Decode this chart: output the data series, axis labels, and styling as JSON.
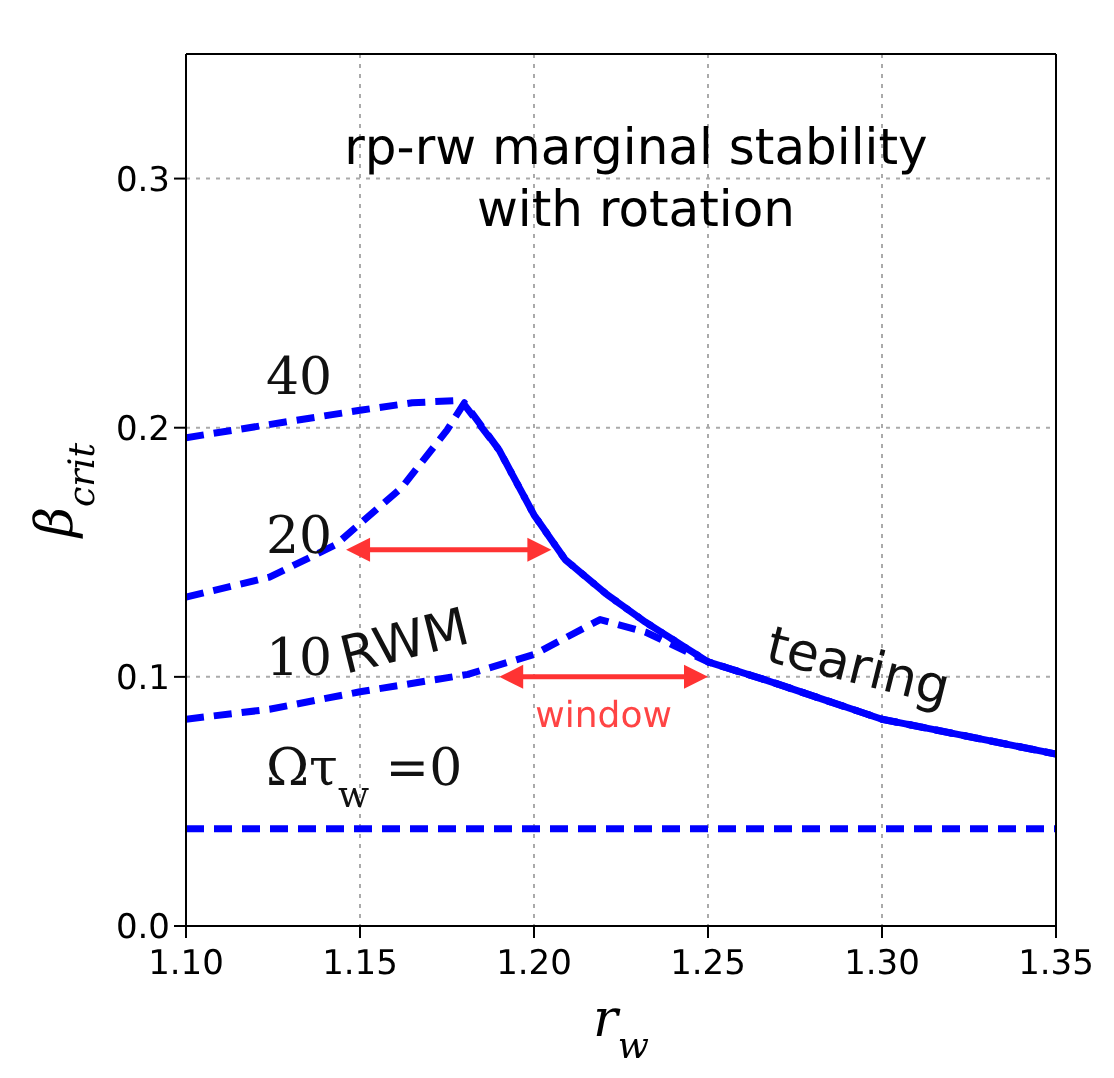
{
  "chart_data": {
    "type": "line",
    "title": "rp-rw marginal stability with rotation",
    "xlabel": "r$_{w}$",
    "ylabel": "β$_{crit}$",
    "xlim": [
      1.1,
      1.35
    ],
    "xticks": [
      {
        "value": 1.1,
        "label": "1.10"
      },
      {
        "value": 1.15,
        "label": "1.15"
      },
      {
        "value": 1.2,
        "label": "1.20"
      },
      {
        "value": 1.25,
        "label": "1.25"
      },
      {
        "value": 1.3,
        "label": "1.30"
      },
      {
        "value": 1.35,
        "label": "1.35"
      }
    ],
    "ylim": [
      0,
      0.35
    ],
    "yticks": [
      {
        "value": 0,
        "label": "0.0"
      },
      {
        "value": 0.1,
        "label": "0.1"
      },
      {
        "value": 0.2,
        "label": "0.2"
      },
      {
        "value": 0.3,
        "label": "0.3"
      }
    ],
    "grid": true,
    "legend": false,
    "marker": "none",
    "line_style": "dashed",
    "series": [
      {
        "name": "40",
        "color": "#0000ff",
        "x": [
          1.1,
          1.15,
          1.165,
          1.179,
          1.19,
          1.2,
          1.209,
          1.221,
          1.232,
          1.25,
          1.266,
          1.3,
          1.35
        ],
        "values": [
          0.196,
          0.207,
          0.21,
          0.211,
          0.191,
          0.165,
          0.147,
          0.133,
          0.122,
          0.106,
          0.099,
          0.083,
          0.069
        ]
      },
      {
        "name": "20",
        "color": "#0000ff",
        "x": [
          1.1,
          1.124,
          1.143,
          1.162,
          1.175,
          1.18,
          1.19,
          1.2,
          1.209,
          1.221,
          1.232,
          1.25,
          1.266,
          1.3,
          1.35
        ],
        "values": [
          0.132,
          0.14,
          0.153,
          0.176,
          0.199,
          0.21,
          0.191,
          0.165,
          0.147,
          0.133,
          0.122,
          0.106,
          0.099,
          0.083,
          0.069
        ]
      },
      {
        "name": "10",
        "color": "#0000ff",
        "x": [
          1.1,
          1.124,
          1.15,
          1.181,
          1.2,
          1.219,
          1.232,
          1.25,
          1.266,
          1.3,
          1.35
        ],
        "values": [
          0.083,
          0.087,
          0.094,
          0.101,
          0.109,
          0.123,
          0.118,
          0.106,
          0.099,
          0.083,
          0.069
        ]
      },
      {
        "name": "Ωτ$_{w}$ =0",
        "color": "#0000ff",
        "x": [
          1.1,
          1.35
        ],
        "values": [
          0.039,
          0.039
        ]
      }
    ],
    "annotations": [
      "RWM",
      "tearing",
      "window"
    ]
  }
}
